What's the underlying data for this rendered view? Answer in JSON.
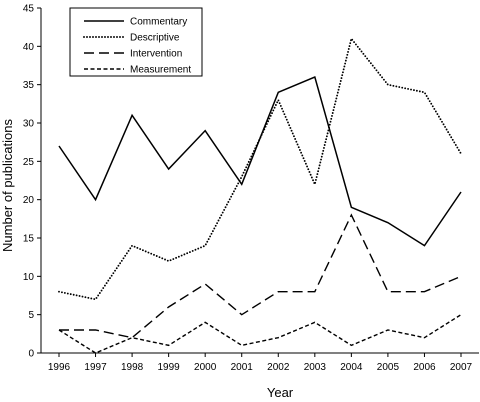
{
  "chart_data": {
    "type": "line",
    "xlabel": "Year",
    "ylabel": "Number of publications",
    "ylim": [
      0,
      45
    ],
    "y_ticks": [
      0,
      5,
      10,
      15,
      20,
      25,
      30,
      35,
      40,
      45
    ],
    "categories": [
      "1996",
      "1997",
      "1998",
      "1999",
      "2000",
      "2001",
      "2002",
      "2003",
      "2004",
      "2005",
      "2006",
      "2007"
    ],
    "grid": false,
    "legend_position": "top-left",
    "series": [
      {
        "name": "Commentary",
        "style": "solid",
        "values": [
          27,
          20,
          31,
          24,
          29,
          22,
          34,
          36,
          19,
          17,
          14,
          21
        ]
      },
      {
        "name": "Descriptive",
        "style": "dotted",
        "values": [
          8,
          7,
          14,
          12,
          14,
          23,
          33,
          22,
          41,
          35,
          34,
          26
        ]
      },
      {
        "name": "Intervention",
        "style": "long-dashed",
        "values": [
          3,
          3,
          2,
          6,
          9,
          5,
          8,
          8,
          18,
          8,
          8,
          10
        ]
      },
      {
        "name": "Measurement",
        "style": "short-dashed",
        "values": [
          3,
          0,
          2,
          1,
          4,
          1,
          2,
          4,
          1,
          3,
          2,
          5
        ]
      }
    ]
  }
}
